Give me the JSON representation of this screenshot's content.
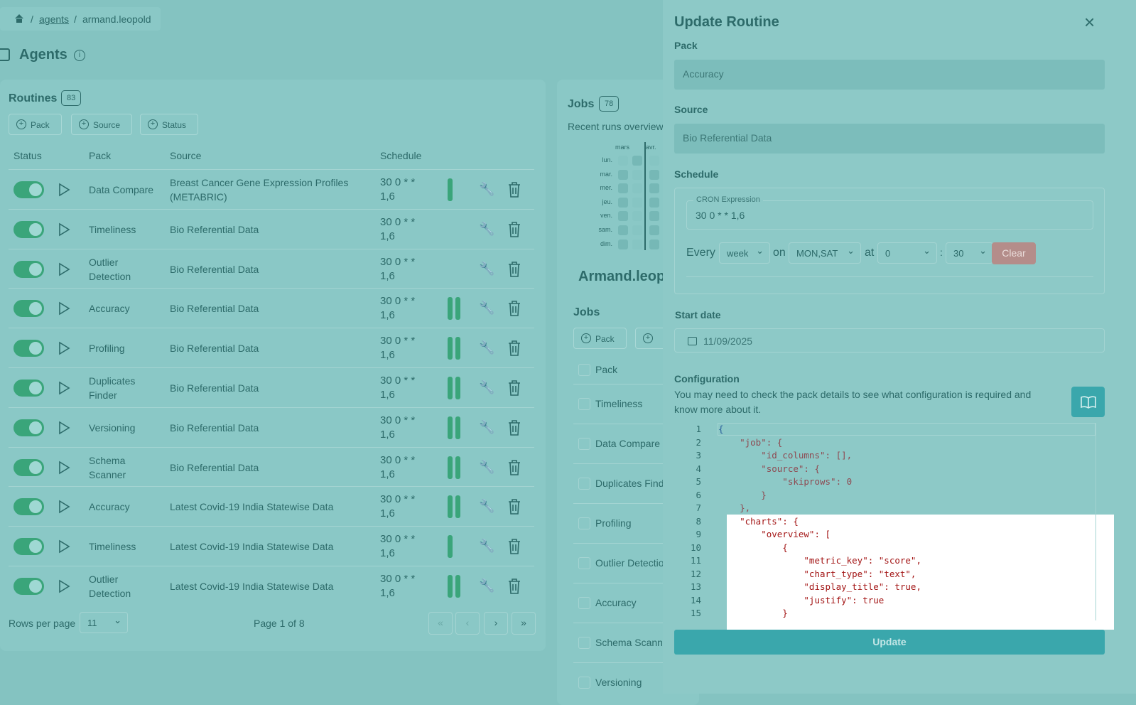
{
  "breadcrumb": [
    "agents",
    "armand.leopold"
  ],
  "page_title": "Agents",
  "routines": {
    "title": "Routines",
    "count": "83",
    "filters": [
      "Pack",
      "Source",
      "Status"
    ],
    "columns": [
      "Status",
      "Pack",
      "Source",
      "Schedule"
    ],
    "rows": [
      {
        "pack": "Data Compare",
        "source": "Breast Cancer Gene Expression Profiles (METABRIC)",
        "schedule": "30 0 * * 1,6",
        "recent_runs": 1
      },
      {
        "pack": "Timeliness",
        "source": "Bio Referential Data",
        "schedule": "30 0 * * 1,6",
        "recent_runs": 0
      },
      {
        "pack": "Outlier Detection",
        "source": "Bio Referential Data",
        "schedule": "30 0 * * 1,6",
        "recent_runs": 0
      },
      {
        "pack": "Accuracy",
        "source": "Bio Referential Data",
        "schedule": "30 0 * * 1,6",
        "recent_runs": 2
      },
      {
        "pack": "Profiling",
        "source": "Bio Referential Data",
        "schedule": "30 0 * * 1,6",
        "recent_runs": 2
      },
      {
        "pack": "Duplicates Finder",
        "source": "Bio Referential Data",
        "schedule": "30 0 * * 1,6",
        "recent_runs": 2
      },
      {
        "pack": "Versioning",
        "source": "Bio Referential Data",
        "schedule": "30 0 * * 1,6",
        "recent_runs": 2
      },
      {
        "pack": "Schema Scanner",
        "source": "Bio Referential Data",
        "schedule": "30 0 * * 1,6",
        "recent_runs": 2
      },
      {
        "pack": "Accuracy",
        "source": "Latest Covid-19 India Statewise Data",
        "schedule": "30 0 * * 1,6",
        "recent_runs": 2
      },
      {
        "pack": "Timeliness",
        "source": "Latest Covid-19 India Statewise Data",
        "schedule": "30 0 * * 1,6",
        "recent_runs": 1
      },
      {
        "pack": "Outlier Detection",
        "source": "Latest Covid-19 India Statewise Data",
        "schedule": "30 0 * * 1,6",
        "recent_runs": 2
      }
    ],
    "rows_per_page_label": "Rows per page",
    "rows_per_page": "11",
    "page_info": "Page 1 of 8"
  },
  "jobs": {
    "title": "Jobs",
    "count": "78",
    "subtitle": "Recent runs overview",
    "months": [
      "mars",
      "avr."
    ],
    "days": [
      "lun.",
      "mar.",
      "mer.",
      "jeu.",
      "ven.",
      "sam.",
      "dim."
    ],
    "agent_name": "Armand.leop",
    "list_title": "Jobs",
    "filters": [
      "Pack"
    ],
    "column": "Pack",
    "rows": [
      "Timeliness",
      "Data Compare",
      "Duplicates Finder",
      "Profiling",
      "Outlier Detection",
      "Accuracy",
      "Schema Scanner",
      "Versioning"
    ]
  },
  "drawer": {
    "title": "Update Routine",
    "pack_label": "Pack",
    "pack_value": "Accuracy",
    "source_label": "Source",
    "source_value": "Bio Referential Data",
    "schedule_label": "Schedule",
    "cron_label": "CRON Expression",
    "cron_value": "30 0 * * 1,6",
    "every": "Every",
    "period": "week",
    "on": "on",
    "days": "MON,SAT",
    "at": "at",
    "hour": "0",
    "colon": ":",
    "minute": "30",
    "clear": "Clear",
    "start_label": "Start date",
    "start_value": "11/09/2025",
    "config_label": "Configuration",
    "config_help": "You may need to check the pack details to see what configuration is required and know more about it.",
    "code": [
      {
        "n": "1",
        "text": "{"
      },
      {
        "n": "2",
        "text": "    \"job\": {"
      },
      {
        "n": "3",
        "text": "        \"id_columns\": [],"
      },
      {
        "n": "4",
        "text": "        \"source\": {"
      },
      {
        "n": "5",
        "text": "            \"skiprows\": 0"
      },
      {
        "n": "6",
        "text": "        }"
      },
      {
        "n": "7",
        "text": "    },"
      },
      {
        "n": "8",
        "text": "    \"charts\": {"
      },
      {
        "n": "9",
        "text": "        \"overview\": ["
      },
      {
        "n": "10",
        "text": "            {"
      },
      {
        "n": "11",
        "text": "                \"metric_key\": \"score\","
      },
      {
        "n": "12",
        "text": "                \"chart_type\": \"text\","
      },
      {
        "n": "13",
        "text": "                \"display_title\": true,"
      },
      {
        "n": "14",
        "text": "                \"justify\": true"
      },
      {
        "n": "15",
        "text": "            }"
      }
    ],
    "submit": "Update"
  }
}
